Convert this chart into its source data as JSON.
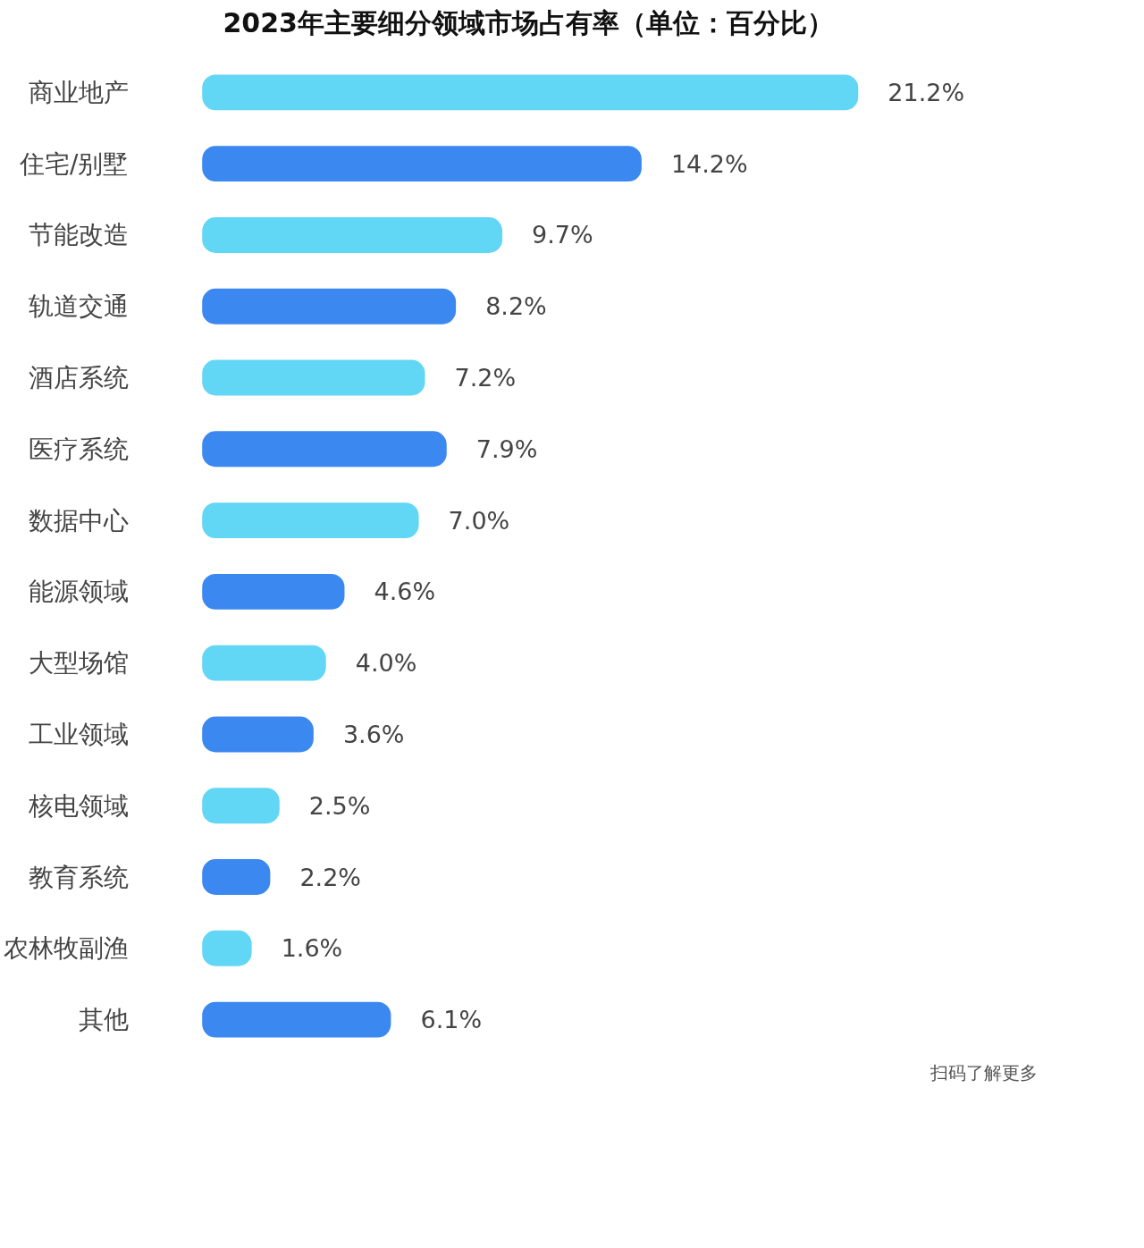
{
  "chart_data": {
    "type": "bar",
    "orientation": "horizontal",
    "title": "2023年主要细分领域市场占有率（单位：百分比）",
    "categories": [
      "商业地产",
      "住宅/别墅",
      "节能改造",
      "轨道交通",
      "酒店系统",
      "医疗系统",
      "数据中心",
      "能源领域",
      "大型场馆",
      "工业领域",
      "核电领域",
      "教育系统",
      "农林牧副渔",
      "其他"
    ],
    "values": [
      21.2,
      14.2,
      9.7,
      8.2,
      7.2,
      7.9,
      7.0,
      4.6,
      4.0,
      3.6,
      2.5,
      2.2,
      1.6,
      6.1
    ],
    "colors": [
      "#62d6f5",
      "#3a88f0",
      "#62d6f5",
      "#3a88f0",
      "#62d6f5",
      "#3a88f0",
      "#62d6f5",
      "#3a88f0",
      "#62d6f5",
      "#3a88f0",
      "#62d6f5",
      "#3a88f0",
      "#62d6f5",
      "#3a88f0"
    ],
    "value_labels": [
      "21.2%",
      "14.2%",
      "9.7%",
      "8.2%",
      "7.2%",
      "7.9%",
      "7.0%",
      "4.6%",
      "4.0%",
      "3.6%",
      "2.5%",
      "2.2%",
      "1.6%",
      "6.1%"
    ],
    "tick_labels": "y",
    "grid": false,
    "annotations": [
      "扫码了解更多"
    ]
  }
}
